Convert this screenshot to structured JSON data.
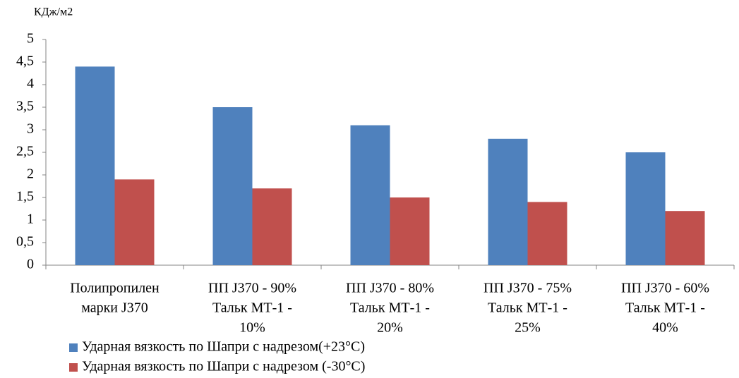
{
  "chart_data": {
    "type": "bar",
    "y_label": "КДж/м2",
    "categories": [
      [
        "Полипропилен",
        "марки J370"
      ],
      [
        "ПП J370 - 90%",
        "Тальк МТ-1 -",
        "10%"
      ],
      [
        "ПП J370 - 80%",
        "Тальк МТ-1 -",
        "20%"
      ],
      [
        "ПП J370 - 75%",
        "Тальк МТ-1 -",
        "25%"
      ],
      [
        "ПП J370 - 60%",
        "Тальк МТ-1 -",
        "40%"
      ]
    ],
    "series": [
      {
        "name": "Ударная вязкость по Шапри с надрезом(+23°C)",
        "color": "#4f81bd",
        "values": [
          4.4,
          3.5,
          3.1,
          2.8,
          2.5
        ]
      },
      {
        "name": "Ударная вязкость по Шапри с надрезом (-30°C)",
        "color": "#c0504d",
        "values": [
          1.9,
          1.7,
          1.5,
          1.4,
          1.2
        ]
      }
    ],
    "ylim": [
      0,
      5
    ],
    "yticks": [
      0,
      {
        "value": 0.5,
        "label": "0,5"
      },
      1,
      {
        "value": 1.5,
        "label": "1,5"
      },
      2,
      {
        "value": 2.5,
        "label": "2,5"
      },
      3,
      {
        "value": 3.5,
        "label": "3,5"
      },
      4,
      {
        "value": 4.5,
        "label": "4,5"
      },
      5
    ],
    "grid": false,
    "legend": "bottom"
  }
}
